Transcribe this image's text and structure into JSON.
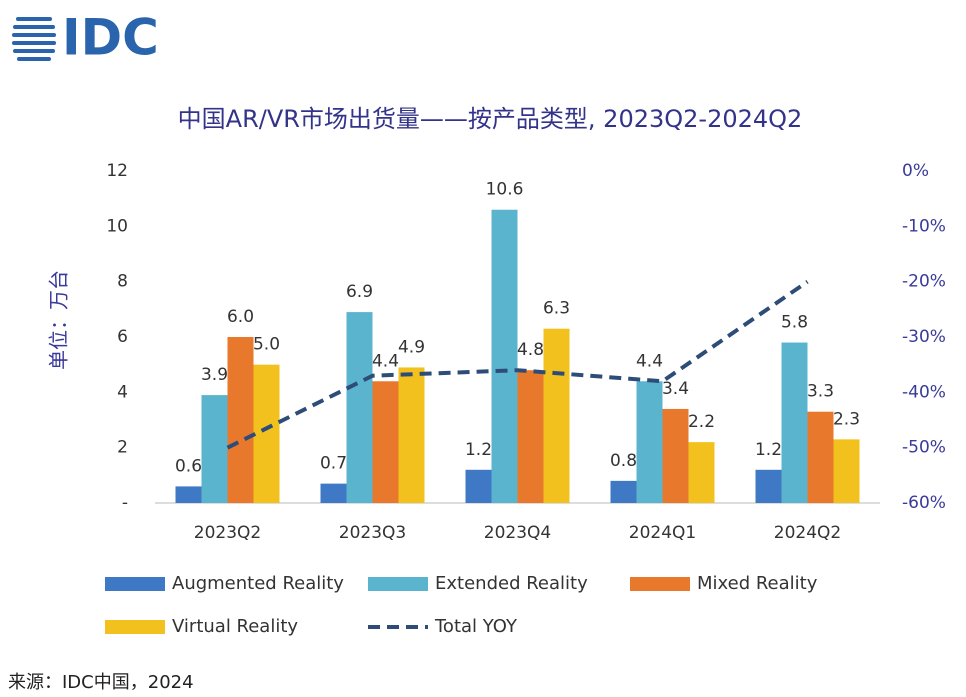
{
  "logo": "IDC",
  "source": "来源：IDC中国，2024",
  "chart_data": {
    "type": "bar",
    "title": "中国AR/VR市场出货量——按产品类型, 2023Q2-2024Q2",
    "ylabel": "单位：万台",
    "categories": [
      "2023Q2",
      "2023Q3",
      "2023Q4",
      "2024Q1",
      "2024Q2"
    ],
    "series": [
      {
        "name": "Augmented Reality",
        "color": "#3f78c4",
        "values": [
          0.6,
          0.7,
          1.2,
          0.8,
          1.2
        ],
        "value_labels": [
          "0.6",
          "0.7",
          "1.2",
          "0.8",
          "1.2"
        ]
      },
      {
        "name": "Extended Reality",
        "color": "#5bb4cd",
        "values": [
          3.9,
          6.9,
          10.6,
          4.4,
          5.8
        ],
        "value_labels": [
          "3.9",
          "6.9",
          "10.6",
          "4.4",
          "5.8"
        ]
      },
      {
        "name": "Mixed Reality",
        "color": "#e8792c",
        "values": [
          6.0,
          4.4,
          4.8,
          3.4,
          3.3
        ],
        "value_labels": [
          "6.0",
          "4.4",
          "4.8",
          "3.4",
          "3.3"
        ]
      },
      {
        "name": "Virtual Reality",
        "color": "#f2c11d",
        "values": [
          5.0,
          4.9,
          6.3,
          2.2,
          2.3
        ],
        "value_labels": [
          "5.0",
          "4.9",
          "6.3",
          "2.2",
          "2.3"
        ]
      },
      {
        "name": "Total YOY",
        "type": "line",
        "axis": "y2",
        "color": "#2d4d78",
        "values": [
          -50,
          -37,
          -36,
          -38,
          -20
        ]
      }
    ],
    "ylim": [
      0,
      12
    ],
    "yticks": [
      {
        "value": 0,
        "label": "-"
      },
      2,
      4,
      6,
      8,
      10,
      12
    ],
    "y2lim": [
      -60,
      0
    ],
    "y2ticks": [
      {
        "value": -60,
        "label": "-60%"
      },
      {
        "value": -50,
        "label": "-50%"
      },
      {
        "value": -40,
        "label": "-40%"
      },
      {
        "value": -30,
        "label": "-30%"
      },
      {
        "value": -20,
        "label": "-20%"
      },
      {
        "value": -10,
        "label": "-10%"
      },
      {
        "value": 0,
        "label": "0%"
      }
    ],
    "grid": false
  }
}
